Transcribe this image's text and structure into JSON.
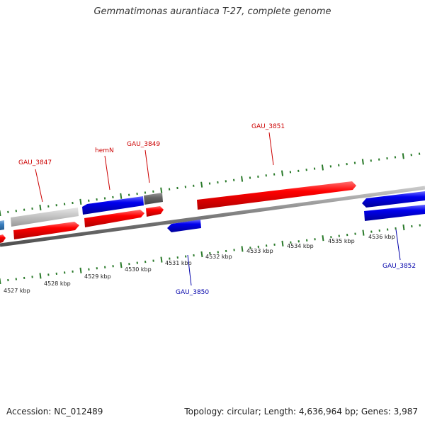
{
  "title": "Gemmatimonas aurantiaca T-27, complete genome",
  "footer": {
    "accession": "Accession: NC_012489",
    "topology": "Topology: circular; Length: 4,636,964 bp; Genes: 3,987"
  },
  "colors": {
    "forward": "#ee0000",
    "reverse": "#0000cc",
    "backbone": "#777777",
    "tick": "#2a7a2a",
    "label_forward": "#cc0000",
    "label_reverse": "#0000aa"
  },
  "scale": {
    "labels": [
      "4527 kbp",
      "4528 kbp",
      "4529 kbp",
      "4530 kbp",
      "4531 kbp",
      "4532 kbp",
      "4533 kbp",
      "4534 kbp",
      "4535 kbp",
      "4536 kbp"
    ]
  },
  "gene_labels": [
    {
      "text": "GAU_3847",
      "strand": "forward"
    },
    {
      "text": "hemN",
      "strand": "forward"
    },
    {
      "text": "GAU_3849",
      "strand": "forward"
    },
    {
      "text": "GAU_3851",
      "strand": "forward"
    },
    {
      "text": "GAU_3850",
      "strand": "reverse"
    },
    {
      "text": "GAU_3852",
      "strand": "reverse"
    }
  ]
}
